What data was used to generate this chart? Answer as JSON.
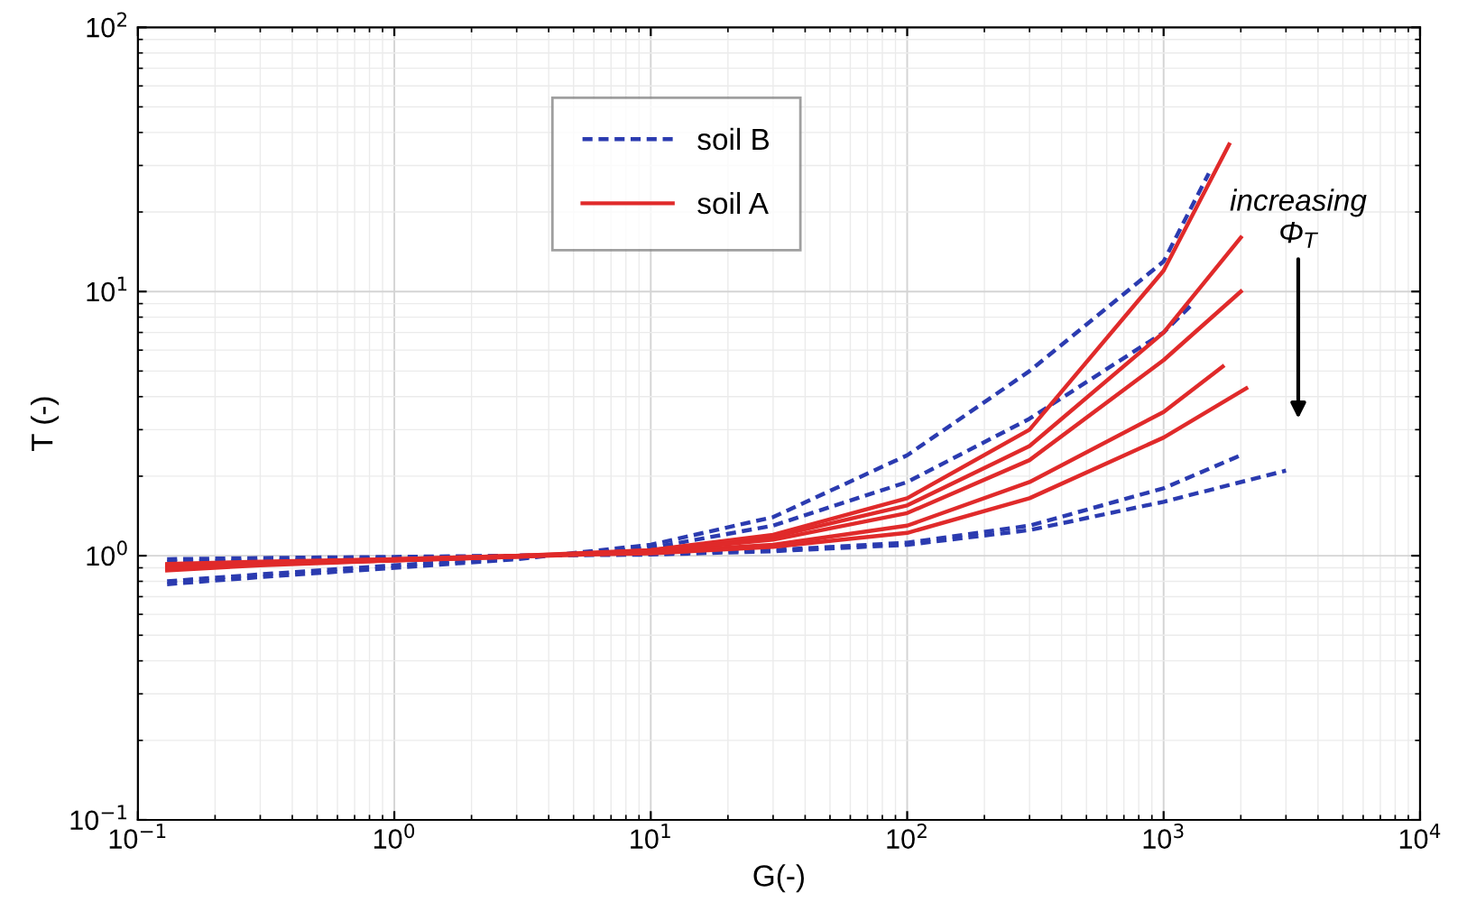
{
  "chart_data": {
    "type": "line",
    "xlabel": "G(-)",
    "ylabel": "T (-)",
    "log": "xy",
    "grid": true,
    "legend": "top",
    "line_style": "solid",
    "marker": "none",
    "xlim": [
      0.1,
      10000
    ],
    "ylim": [
      0.1,
      100
    ],
    "xticks": [
      {
        "value": 0.1,
        "label": "10$^{−1}$"
      },
      {
        "value": 1,
        "label": "10$^{0}$"
      },
      {
        "value": 10,
        "label": "10$^{1}$"
      },
      {
        "value": 100,
        "label": "10$^{2}$"
      },
      {
        "value": 1000,
        "label": "10$^{3}$"
      },
      {
        "value": 10000,
        "label": "10$^{4}$"
      }
    ],
    "yticks": [
      {
        "value": 0.1,
        "label": "10$^{−1}$"
      },
      {
        "value": 1,
        "label": "10$^{0}$"
      },
      {
        "value": 10,
        "label": "10$^{1}$"
      },
      {
        "value": 100,
        "label": "10$^{2}$"
      }
    ],
    "annotations": [
      "increasing\nΦ$_{T}$"
    ],
    "series": [
      {
        "name": "soil B",
        "color": "#2b3bb0",
        "line_style": "dashed",
        "x": [
          0.13,
          0.3,
          1,
          3,
          10,
          30,
          100,
          300,
          1000,
          1500
        ],
        "values": [
          0.78,
          0.83,
          0.9,
          0.97,
          1.1,
          1.4,
          2.4,
          5,
          13,
          28
        ]
      },
      {
        "color": "#2b3bb0",
        "line_style": "dashed",
        "x": [
          0.13,
          0.3,
          1,
          3,
          10,
          30,
          100,
          300,
          1000,
          1300
        ],
        "values": [
          0.8,
          0.85,
          0.92,
          0.98,
          1.07,
          1.3,
          1.9,
          3.3,
          7,
          9
        ]
      },
      {
        "color": "#2b3bb0",
        "line_style": "dashed",
        "x": [
          0.13,
          0.3,
          1,
          3,
          10,
          30,
          100,
          300,
          1000,
          2000
        ],
        "values": [
          0.95,
          0.96,
          0.98,
          1.0,
          1.02,
          1.05,
          1.12,
          1.3,
          1.8,
          2.4
        ]
      },
      {
        "color": "#2b3bb0",
        "line_style": "dashed",
        "x": [
          0.13,
          0.3,
          1,
          3,
          10,
          30,
          100,
          300,
          1000,
          3000
        ],
        "values": [
          0.97,
          0.98,
          0.99,
          1.0,
          1.01,
          1.04,
          1.1,
          1.25,
          1.6,
          2.1
        ]
      },
      {
        "name": "soil A",
        "color": "#e02a2a",
        "x": [
          0.13,
          0.3,
          1,
          3,
          10,
          30,
          100,
          300,
          1000,
          1800
        ],
        "values": [
          0.9,
          0.93,
          0.96,
          0.99,
          1.05,
          1.2,
          1.65,
          3.0,
          12,
          36
        ]
      },
      {
        "color": "#e02a2a",
        "x": [
          0.13,
          0.3,
          1,
          3,
          10,
          30,
          100,
          300,
          1000,
          2000
        ],
        "values": [
          0.92,
          0.94,
          0.97,
          1.0,
          1.05,
          1.18,
          1.55,
          2.6,
          7,
          16
        ]
      },
      {
        "color": "#e02a2a",
        "x": [
          0.13,
          0.3,
          1,
          3,
          10,
          30,
          100,
          300,
          1000,
          2000
        ],
        "values": [
          0.88,
          0.92,
          0.96,
          1.0,
          1.04,
          1.15,
          1.45,
          2.3,
          5.5,
          10
        ]
      },
      {
        "color": "#e02a2a",
        "x": [
          0.13,
          0.3,
          1,
          3,
          10,
          30,
          100,
          300,
          1000,
          1700
        ],
        "values": [
          0.9,
          0.93,
          0.96,
          0.99,
          1.03,
          1.1,
          1.3,
          1.9,
          3.5,
          5.2
        ]
      },
      {
        "color": "#e02a2a",
        "x": [
          0.13,
          0.3,
          1,
          3,
          10,
          30,
          100,
          300,
          1000,
          2100
        ],
        "values": [
          0.93,
          0.95,
          0.97,
          1.0,
          1.02,
          1.08,
          1.22,
          1.65,
          2.8,
          4.3
        ]
      }
    ]
  }
}
